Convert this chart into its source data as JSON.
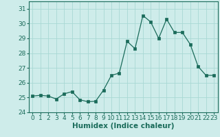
{
  "x": [
    0,
    1,
    2,
    3,
    4,
    5,
    6,
    7,
    8,
    9,
    10,
    11,
    12,
    13,
    14,
    15,
    16,
    17,
    18,
    19,
    20,
    21,
    22,
    23
  ],
  "y": [
    25.1,
    25.15,
    25.1,
    24.9,
    25.25,
    25.4,
    24.85,
    24.72,
    24.75,
    25.5,
    26.5,
    26.65,
    28.8,
    28.3,
    30.55,
    30.1,
    29.0,
    30.3,
    29.4,
    29.4,
    28.6,
    27.1,
    26.5,
    26.5
  ],
  "xlabel": "Humidex (Indice chaleur)",
  "ylim": [
    24,
    31.5
  ],
  "xlim": [
    -0.5,
    23.5
  ],
  "yticks": [
    24,
    25,
    26,
    27,
    28,
    29,
    30,
    31
  ],
  "xticks": [
    0,
    1,
    2,
    3,
    4,
    5,
    6,
    7,
    8,
    9,
    10,
    11,
    12,
    13,
    14,
    15,
    16,
    17,
    18,
    19,
    20,
    21,
    22,
    23
  ],
  "line_color": "#1a6b5a",
  "marker_color": "#1a6b5a",
  "bg_color": "#ceecea",
  "grid_color": "#a8d8d4",
  "tick_color": "#1a6b5a",
  "label_color": "#1a6b5a",
  "tick_fontsize": 6.5,
  "label_fontsize": 7.5
}
